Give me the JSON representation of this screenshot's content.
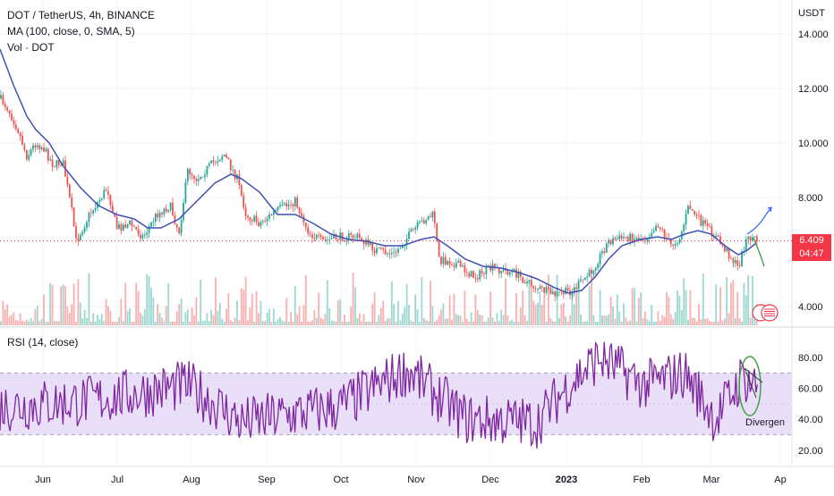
{
  "header": {
    "symbol_line": "DOT / TetherUS, 4h, BINANCE",
    "ma_line": "MA (100, close, 0, SMA, 5)",
    "vol_line": "Vol · DOT",
    "rsi_line": "RSI (14, close)"
  },
  "price_axis": {
    "unit": "USDT",
    "ticks": [
      "14.000",
      "12.000",
      "10.000",
      "8.000",
      "4.000"
    ]
  },
  "last_price": {
    "value": "6.409",
    "countdown": "04:47"
  },
  "rsi_axis": {
    "ticks": [
      "80.00",
      "60.00",
      "40.00",
      "20.00"
    ]
  },
  "time_axis": {
    "labels": [
      "Jun",
      "Jul",
      "Aug",
      "Sep",
      "Oct",
      "Nov",
      "Dec",
      "2023",
      "Feb",
      "Mar",
      "Ap"
    ]
  },
  "annotation": {
    "text": "Divergen"
  },
  "colors": {
    "up": "#26a69a",
    "down": "#ef5350",
    "ma": "#3f51b5",
    "rsi_line": "#7e27a0",
    "rsi_band": "#e9dff8",
    "last_price": "#f23645",
    "arrow_up": "#2962ff",
    "arrow_down": "#43a047"
  },
  "chart_data": [
    {
      "type": "line",
      "title": "DOT / TetherUS, 4h, BINANCE",
      "series": [
        {
          "name": "DOT / TetherUS",
          "x": [
            "Jun",
            "Jul",
            "Aug",
            "Sep",
            "Oct",
            "Nov",
            "Dec",
            "2023",
            "Feb",
            "Mar"
          ],
          "values": [
            10.2,
            6.8,
            8.8,
            7.0,
            6.2,
            6.9,
            5.3,
            4.6,
            6.8,
            6.0
          ]
        },
        {
          "name": "MA (100, close, 0, SMA, 5)",
          "x": [
            "Jun",
            "Jul",
            "Aug",
            "Sep",
            "Oct",
            "Nov",
            "Dec",
            "2023",
            "Feb",
            "Mar"
          ],
          "values": [
            10.6,
            7.3,
            7.8,
            7.8,
            6.5,
            6.5,
            5.2,
            4.6,
            6.5,
            6.3
          ]
        }
      ],
      "ylim": [
        3.5,
        15.0
      ],
      "last_value": 6.409,
      "grid": true
    },
    {
      "type": "line",
      "title": "RSI (14, close)",
      "series": [
        {
          "name": "RSI (14, close)",
          "x": [
            "Jun",
            "Jul",
            "Aug",
            "Sep",
            "Oct",
            "Nov",
            "Dec",
            "2023",
            "Feb",
            "Mar"
          ],
          "values": [
            45,
            58,
            62,
            42,
            48,
            75,
            40,
            55,
            70,
            62
          ]
        }
      ],
      "band": [
        30,
        70
      ],
      "ylim": [
        15,
        92
      ]
    }
  ]
}
